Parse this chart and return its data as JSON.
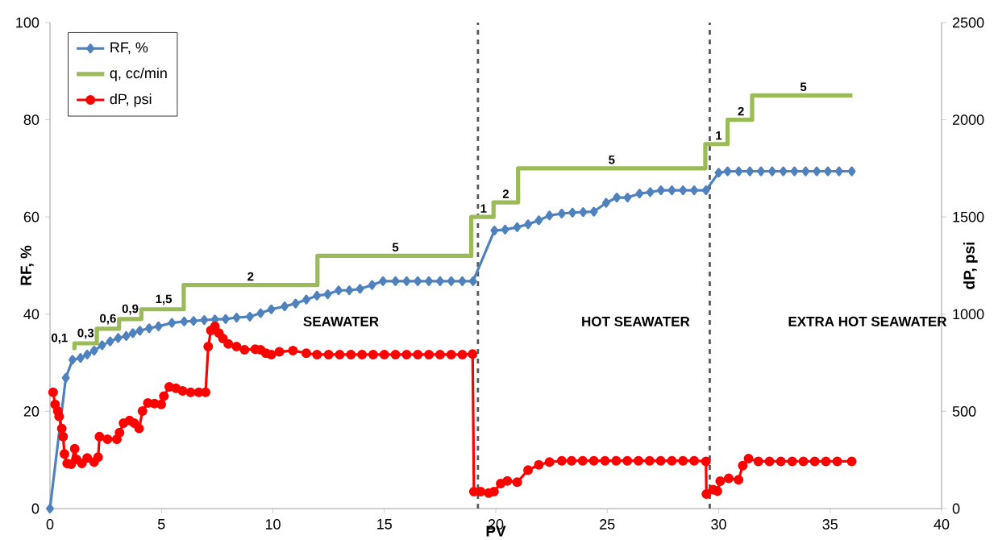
{
  "chart_data": {
    "type": "line",
    "xlabel": "PV",
    "ylabel": "RF, %",
    "y2label": "dP, psi",
    "xlim": [
      0,
      40
    ],
    "xticks": [
      0,
      5,
      10,
      15,
      20,
      25,
      30,
      35,
      40
    ],
    "ylim": [
      0,
      100
    ],
    "yticks": [
      0,
      20,
      40,
      60,
      80,
      100
    ],
    "y2lim": [
      0,
      2500
    ],
    "y2ticks": [
      0,
      500,
      1000,
      1500,
      2000,
      2500
    ],
    "legend": "top left",
    "series": [
      {
        "name": "RF, %",
        "color": "#4f81bd",
        "marker": "diamond",
        "x": [
          0,
          0.71,
          1.01,
          1.37,
          1.67,
          1.98,
          2.34,
          2.7,
          3.06,
          3.42,
          3.72,
          4.03,
          4.45,
          4.87,
          5.47,
          6.02,
          6.44,
          6.92,
          7.4,
          7.88,
          8.37,
          8.97,
          9.45,
          9.93,
          10.53,
          11.02,
          11.5,
          11.98,
          12.46,
          12.95,
          13.43,
          13.91,
          14.45,
          14.94,
          15.5,
          16,
          16.5,
          17,
          17.5,
          18,
          18.5,
          18.98,
          19.94,
          20.42,
          20.96,
          21.45,
          21.93,
          22.41,
          22.96,
          23.44,
          23.92,
          24.4,
          24.95,
          25.43,
          25.91,
          26.45,
          26.93,
          27.41,
          27.9,
          28.4,
          28.9,
          29.43,
          30.0,
          30.4,
          30.9,
          31.4,
          31.9,
          32.4,
          32.9,
          33.4,
          33.9,
          34.4,
          34.9,
          35.4,
          35.97
        ],
        "values": [
          0,
          26.9,
          30.6,
          31.0,
          31.7,
          32.5,
          33.6,
          34.4,
          35.1,
          35.5,
          36.1,
          36.6,
          37.1,
          37.5,
          38.2,
          38.5,
          38.6,
          38.8,
          38.9,
          39.0,
          39.3,
          39.5,
          40.2,
          41.0,
          41.6,
          42.2,
          43.0,
          43.8,
          44.1,
          44.9,
          44.9,
          45.2,
          46.0,
          46.8,
          46.8,
          46.8,
          46.8,
          46.8,
          46.8,
          46.8,
          46.8,
          46.8,
          57.2,
          57.4,
          57.9,
          58.5,
          59.3,
          60.3,
          60.7,
          60.9,
          61.0,
          61.1,
          62.9,
          64.0,
          64.0,
          64.8,
          65.1,
          65.5,
          65.5,
          65.5,
          65.5,
          65.5,
          69.1,
          69.4,
          69.4,
          69.4,
          69.4,
          69.4,
          69.4,
          69.4,
          69.4,
          69.4,
          69.4,
          69.4,
          69.4
        ]
      },
      {
        "name": "q, cc/min",
        "color": "#9bbb59",
        "type": "step",
        "marker": "none",
        "x": [
          1,
          1.1,
          2.1,
          3.1,
          4.1,
          6,
          12,
          18.9,
          19.9,
          21,
          29.4,
          30.4,
          31.5,
          36
        ],
        "values": [
          33,
          34,
          37,
          39,
          41,
          46,
          52,
          60,
          63,
          70,
          75,
          80,
          85,
          85
        ]
      },
      {
        "name": "dP, psi",
        "color": "#ff0000",
        "marker": "circle",
        "axis": "y2",
        "x": [
          0.14,
          0.23,
          0.35,
          0.41,
          0.53,
          0.59,
          0.65,
          0.77,
          0.95,
          1.11,
          1.19,
          1.43,
          1.67,
          1.98,
          2.16,
          2.22,
          2.58,
          3.0,
          3.12,
          3.3,
          3.57,
          3.78,
          4.0,
          4.15,
          4.39,
          4.69,
          4.99,
          5.11,
          5.35,
          5.65,
          5.95,
          6.31,
          6.68,
          6.98,
          7.1,
          7.22,
          7.4,
          7.58,
          7.76,
          8.0,
          8.37,
          8.73,
          9.21,
          9.45,
          9.69,
          9.93,
          10.29,
          10.9,
          11.5,
          11.98,
          12.5,
          13,
          13.5,
          14,
          14.5,
          15,
          15.5,
          16,
          16.5,
          17,
          17.5,
          18,
          18.5,
          18.96,
          19.02,
          19.32,
          19.68,
          19.92,
          20.22,
          20.52,
          20.96,
          21.45,
          21.93,
          22.41,
          22.96,
          23.4,
          23.9,
          24.4,
          24.9,
          25.4,
          25.9,
          26.4,
          26.9,
          27.4,
          27.9,
          28.4,
          28.9,
          29.43,
          29.45,
          29.75,
          29.94,
          30.07,
          30.45,
          30.89,
          31.08,
          31.34,
          31.78,
          32.28,
          32.79,
          33.3,
          33.8,
          34.31,
          34.81,
          35.32,
          35.97
        ],
        "values": [
          598,
          536,
          502,
          474,
          412,
          370,
          281,
          232,
          228,
          308,
          253,
          232,
          260,
          239,
          264,
          370,
          357,
          357,
          391,
          439,
          453,
          439,
          412,
          502,
          543,
          540,
          536,
          578,
          626,
          619,
          605,
          598,
          598,
          598,
          833,
          916,
          937,
          903,
          875,
          847,
          833,
          817,
          820,
          817,
          799,
          792,
          806,
          813,
          799,
          792,
          792,
          792,
          792,
          792,
          792,
          792,
          792,
          792,
          792,
          792,
          792,
          792,
          792,
          795,
          87,
          87,
          80,
          87,
          129,
          142,
          136,
          198,
          225,
          239,
          246,
          246,
          246,
          246,
          246,
          246,
          246,
          246,
          246,
          246,
          246,
          246,
          246,
          243,
          75,
          97,
          90,
          141,
          155,
          148,
          221,
          257,
          243,
          243,
          243,
          243,
          243,
          243,
          243,
          243,
          243
        ]
      }
    ],
    "ref_lines": [
      {
        "axis": "x",
        "value": 19.2,
        "color": "#595959",
        "line_style": "dashed"
      },
      {
        "axis": "x",
        "value": 29.6,
        "color": "#595959",
        "line_style": "dashed"
      }
    ],
    "annotations": [
      {
        "text": "0,1",
        "x": 1,
        "y": 33
      },
      {
        "text": "0,3",
        "x": 1.6,
        "y": 34
      },
      {
        "text": "0,6",
        "x": 2.6,
        "y": 37
      },
      {
        "text": "0,9",
        "x": 3.6,
        "y": 39
      },
      {
        "text": "1,5",
        "x": 5.1,
        "y": 41
      },
      {
        "text": "2",
        "x": 9,
        "y": 46
      },
      {
        "text": "5",
        "x": 15.5,
        "y": 52
      },
      {
        "text": "1",
        "x": 19.45,
        "y": 60
      },
      {
        "text": "2",
        "x": 20.45,
        "y": 63
      },
      {
        "text": "5",
        "x": 25.2,
        "y": 70
      },
      {
        "text": "1",
        "x": 30.0,
        "y": 75
      },
      {
        "text": "2",
        "x": 31.0,
        "y": 80
      },
      {
        "text": "5",
        "x": 33.8,
        "y": 85
      },
      "SEAWATER",
      "HOT SEAWATER",
      "EXTRA HOT SEAWATER"
    ]
  }
}
